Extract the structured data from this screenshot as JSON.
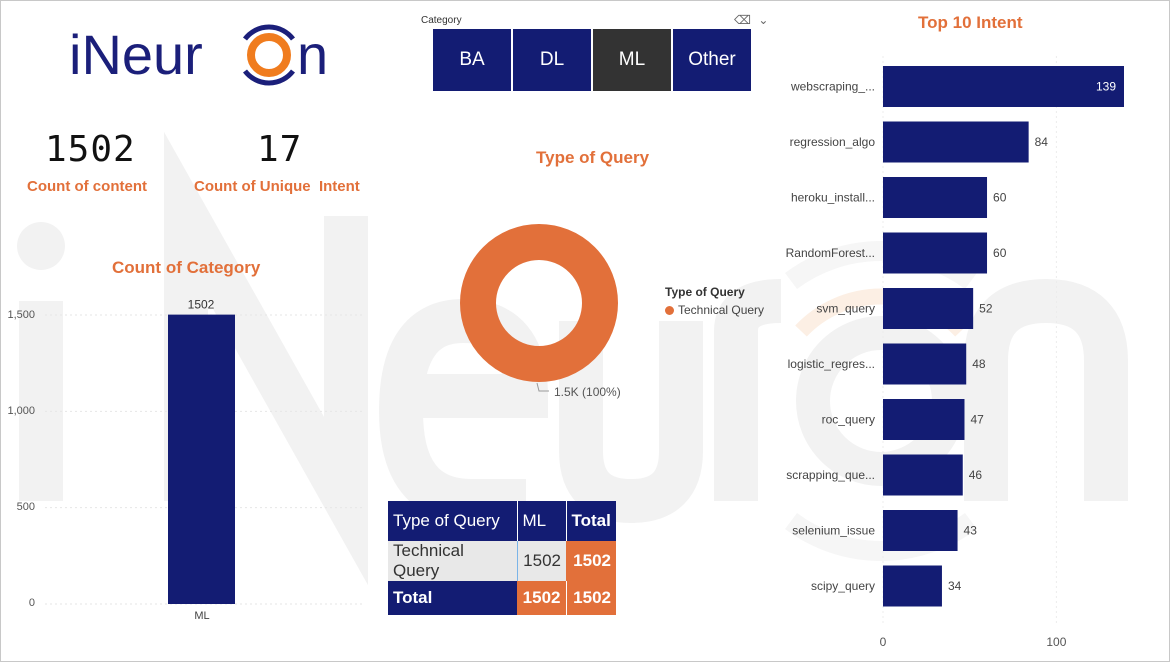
{
  "logo": {
    "text": "iNeuron"
  },
  "slicer": {
    "title": "Category",
    "options": [
      "BA",
      "DL",
      "ML",
      "Other"
    ],
    "selected": "ML",
    "icons": [
      "eraser-icon",
      "chevron-down-icon"
    ]
  },
  "kpis": {
    "content_count": "1502",
    "content_label": "Count of content",
    "unique_intent": "17",
    "unique_intent_label": "Count of Unique  Intent"
  },
  "colors": {
    "navy": "#131c73",
    "orange": "#e2703a",
    "selected": "#333333"
  },
  "chart_data": [
    {
      "type": "bar",
      "title": "Count of Category",
      "categories": [
        "ML"
      ],
      "values": [
        1502
      ],
      "data_labels": [
        "1502"
      ],
      "yticks": [
        "0",
        "500",
        "1,000",
        "1,500"
      ],
      "ylim": [
        0,
        1500
      ],
      "grid": true
    },
    {
      "type": "pie",
      "donut": true,
      "title": "Type of Query",
      "legend_title": "Type of Query",
      "legend_position": "right",
      "slices": [
        {
          "name": "Technical Query",
          "value": 1502,
          "label": "1.5K (100%)"
        }
      ]
    },
    {
      "type": "table",
      "columns": [
        "Type of Query",
        "ML",
        "Total"
      ],
      "rows": [
        [
          "Technical Query",
          "1502",
          "1502"
        ],
        [
          "Total",
          "1502",
          "1502"
        ]
      ]
    },
    {
      "type": "bar",
      "orientation": "horizontal",
      "title": "Top 10 Intent",
      "categories": [
        "webscraping_...",
        "regression_algo",
        "heroku_install...",
        "RandomForest...",
        "svm_query",
        "logistic_regres...",
        "roc_query",
        "scrapping_que...",
        "selenium_issue",
        "scipy_query"
      ],
      "values": [
        139,
        84,
        60,
        60,
        52,
        48,
        47,
        46,
        43,
        34
      ],
      "xticks": [
        "0",
        "100"
      ],
      "xlim": [
        0,
        140
      ]
    }
  ]
}
